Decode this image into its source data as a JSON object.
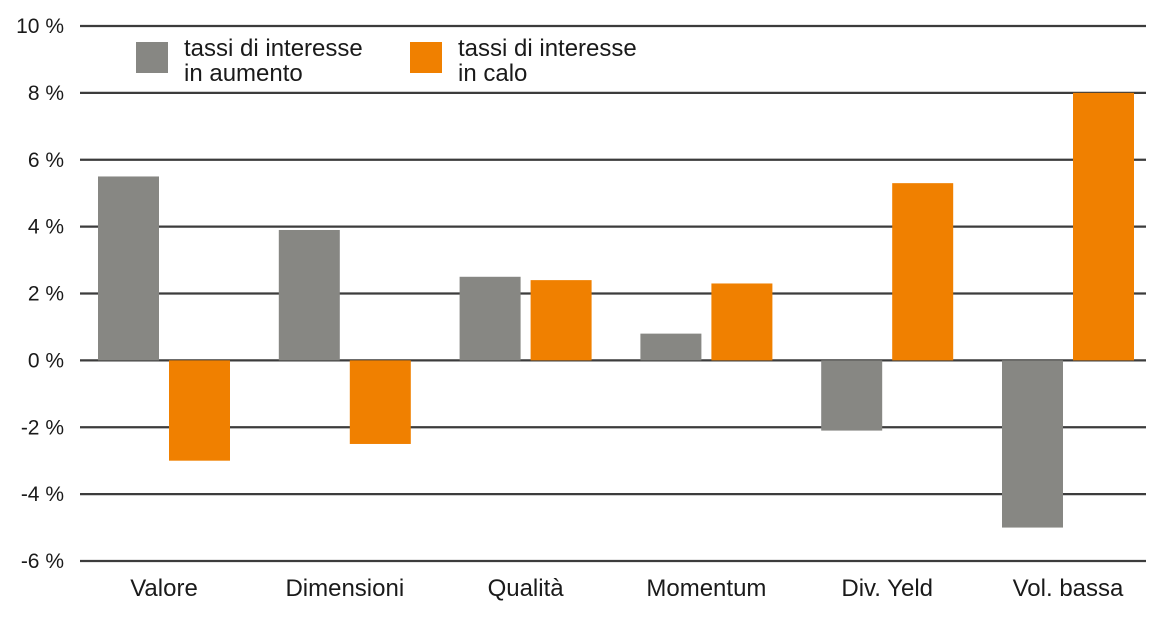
{
  "chart_data": {
    "type": "bar",
    "categories": [
      "Valore",
      "Dimensioni",
      "Qualità",
      "Momentum",
      "Div. Yeld",
      "Vol. bassa"
    ],
    "series": [
      {
        "name": "tassi di interesse in aumento",
        "legend_lines": [
          "tassi di interesse",
          "in aumento"
        ],
        "color": "#878783",
        "values": [
          5.5,
          3.9,
          2.5,
          0.8,
          -2.1,
          -5.0
        ]
      },
      {
        "name": "tassi di interesse in calo",
        "legend_lines": [
          "tassi di interesse",
          "in calo"
        ],
        "color": "#f08000",
        "values": [
          -3.0,
          -2.5,
          2.4,
          2.3,
          5.3,
          8.0
        ]
      }
    ],
    "ylim": [
      -6,
      10
    ],
    "y_ticks": [
      {
        "value": 10,
        "label": "10 %"
      },
      {
        "value": 8,
        "label": "8 %"
      },
      {
        "value": 6,
        "label": "6 %"
      },
      {
        "value": 4,
        "label": "4 %"
      },
      {
        "value": 2,
        "label": "2 %"
      },
      {
        "value": 0,
        "label": "0 %"
      },
      {
        "value": -2,
        "label": "-2 %"
      },
      {
        "value": -4,
        "label": "-4 %"
      },
      {
        "value": -6,
        "label": "-6 %"
      }
    ],
    "grid": true,
    "legend_position": "top-left",
    "title": "",
    "xlabel": "",
    "ylabel": ""
  }
}
